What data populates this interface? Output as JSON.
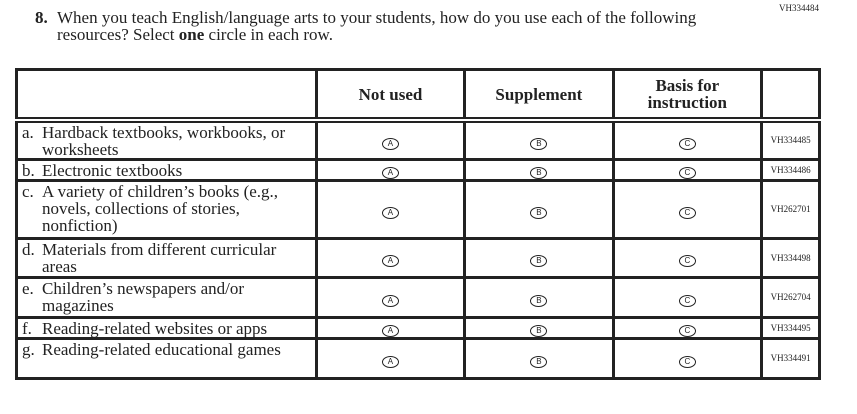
{
  "question_id": "VH334484",
  "question": {
    "number": "8.",
    "text_before": "When you teach English/language arts to your students, how do you use each of the following resources? Select ",
    "text_bold": "one",
    "text_after": " circle in each row."
  },
  "columns": [
    "Not used",
    "Supplement",
    "Basis for instruction"
  ],
  "bubble_letters": [
    "A",
    "B",
    "C"
  ],
  "rows": [
    {
      "letter": "a.",
      "label": "Hardback textbooks, workbooks, or worksheets",
      "code": "VH334485"
    },
    {
      "letter": "b.",
      "label": "Electronic textbooks",
      "code": "VH334486"
    },
    {
      "letter": "c.",
      "label": "A variety of children’s books (e.g., novels, collections of stories, nonfiction)",
      "code": "VH262701"
    },
    {
      "letter": "d.",
      "label": "Materials from different curricular areas",
      "code": "VH334498"
    },
    {
      "letter": "e.",
      "label": "Children’s newspapers and/or magazines",
      "code": "VH262704"
    },
    {
      "letter": "f.",
      "label": "Reading-related websites or apps",
      "code": "VH334495"
    },
    {
      "letter": "g.",
      "label": "Reading-related educational games",
      "code": "VH334491"
    }
  ]
}
